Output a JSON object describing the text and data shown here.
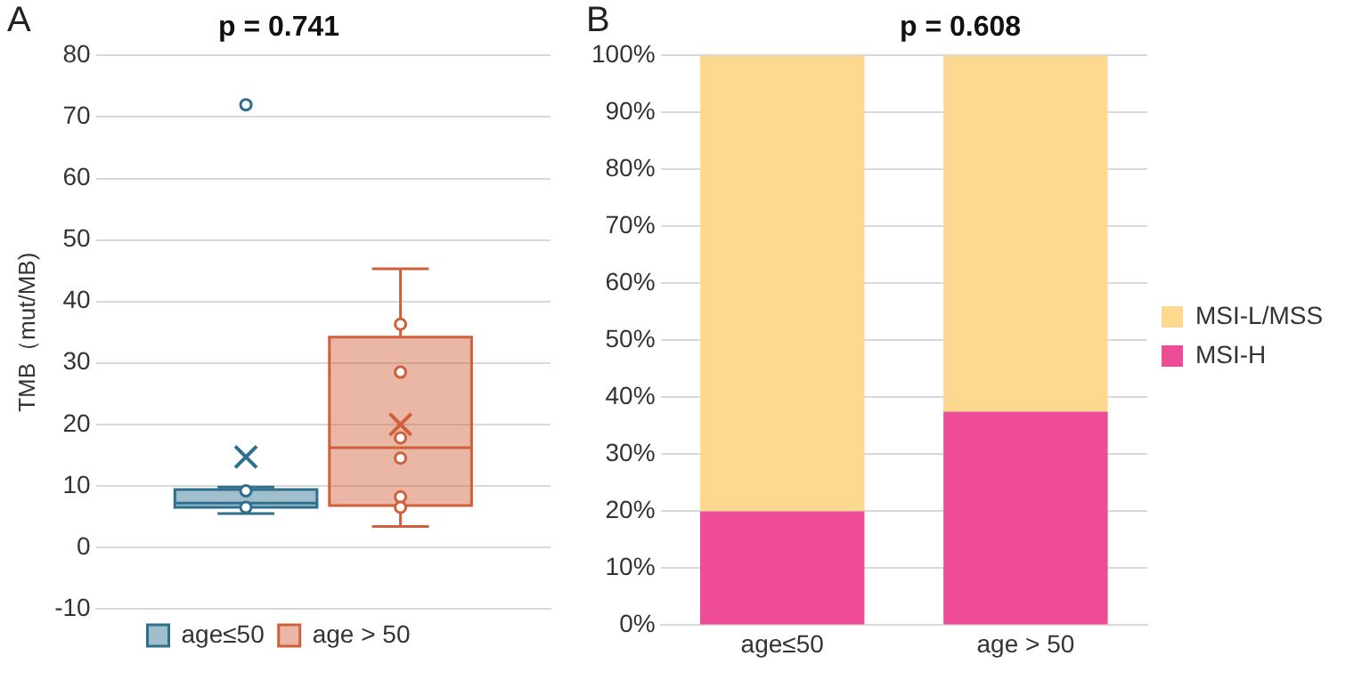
{
  "chart_data": [
    {
      "type": "box",
      "title": "p = 0.741",
      "annotations": [
        "A"
      ],
      "ylabel": "TMB（mut/MB)",
      "categories": [
        null
      ],
      "tick_labels": "y",
      "ylim": [
        -10,
        80
      ],
      "yticks": [
        -10,
        0,
        10,
        20,
        30,
        40,
        50,
        60,
        70,
        80
      ],
      "grid": "y",
      "legend": "bottom",
      "series": [
        {
          "name": "age≤50",
          "color": "#2e6f8e",
          "boxes": [
            {
              "low": 5.5,
              "q1": 6.5,
              "median": 7.2,
              "q3": 9.4,
              "high": 9.8,
              "mean": 14.7,
              "outliers": [
                72,
                9.2,
                6.5
              ]
            }
          ]
        },
        {
          "name": "age > 50",
          "color": "#d0603a",
          "boxes": [
            {
              "low": 3.4,
              "q1": 6.8,
              "median": 16.2,
              "q3": 34.2,
              "high": 45.3,
              "mean": 20,
              "outliers": [
                36.3,
                28.5,
                17.8,
                14.5,
                8.2,
                6.5
              ]
            }
          ]
        }
      ]
    },
    {
      "type": "bar",
      "title": "p = 0.608",
      "annotations": [
        "B"
      ],
      "categories": [
        "age≤50",
        "age > 50"
      ],
      "stacked": true,
      "ylim": [
        0,
        100
      ],
      "yticks": [
        {
          "value": 0,
          "label": "0%"
        },
        {
          "value": 10,
          "label": "10%"
        },
        {
          "value": 20,
          "label": "20%"
        },
        {
          "value": 30,
          "label": "30%"
        },
        {
          "value": 40,
          "label": "40%"
        },
        {
          "value": 50,
          "label": "50%"
        },
        {
          "value": 60,
          "label": "60%"
        },
        {
          "value": 70,
          "label": "70%"
        },
        {
          "value": 80,
          "label": "80%"
        },
        {
          "value": 90,
          "label": "90%"
        },
        {
          "value": 100,
          "label": "100%"
        }
      ],
      "grid": "y",
      "legend": "right",
      "series": [
        {
          "name": "MSI-H",
          "color": "#ee4c97",
          "values": [
            20,
            37.5
          ]
        },
        {
          "name": "MSI-L/MSS",
          "color": "#fdd990",
          "values": [
            80,
            62.5
          ]
        }
      ]
    }
  ]
}
